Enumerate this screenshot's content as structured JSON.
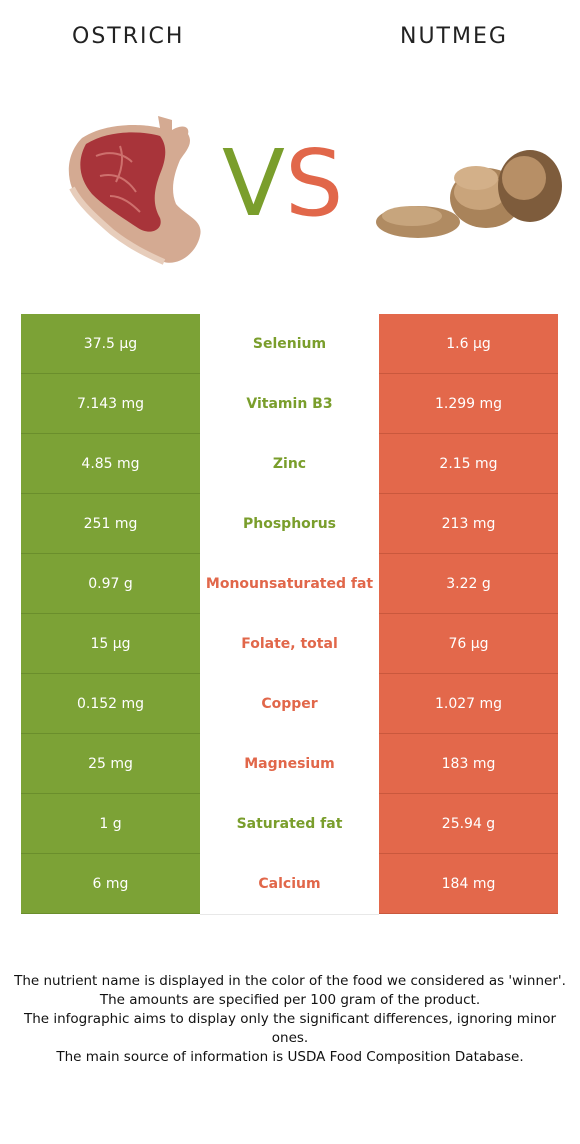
{
  "header": {
    "left_title": "OSTRICH",
    "right_title": "NUTMEG"
  },
  "vs": {
    "v": "V",
    "s": "S"
  },
  "colors": {
    "left_winner": "#7ca236",
    "right_winner": "#e3684b"
  },
  "rows": [
    {
      "left": "37.5 µg",
      "nutrient": "Selenium",
      "right": "1.6 µg",
      "winner": "left"
    },
    {
      "left": "7.143 mg",
      "nutrient": "Vitamin B3",
      "right": "1.299 mg",
      "winner": "left"
    },
    {
      "left": "4.85 mg",
      "nutrient": "Zinc",
      "right": "2.15 mg",
      "winner": "left"
    },
    {
      "left": "251 mg",
      "nutrient": "Phosphorus",
      "right": "213 mg",
      "winner": "left"
    },
    {
      "left": "0.97 g",
      "nutrient": "Monounsaturated fat",
      "right": "3.22 g",
      "winner": "right"
    },
    {
      "left": "15 µg",
      "nutrient": "Folate, total",
      "right": "76 µg",
      "winner": "right"
    },
    {
      "left": "0.152 mg",
      "nutrient": "Copper",
      "right": "1.027 mg",
      "winner": "right"
    },
    {
      "left": "25 mg",
      "nutrient": "Magnesium",
      "right": "183 mg",
      "winner": "right"
    },
    {
      "left": "1 g",
      "nutrient": "Saturated fat",
      "right": "25.94 g",
      "winner": "left"
    },
    {
      "left": "6 mg",
      "nutrient": "Calcium",
      "right": "184 mg",
      "winner": "right"
    }
  ],
  "footer": {
    "line1": "The nutrient name is displayed in the color of the food we considered as 'winner'.",
    "line2": "The amounts are specified per 100 gram of the product.",
    "line3": "The infographic aims to display only the significant differences, ignoring minor ones.",
    "line4": "The main source of information is USDA Food Composition Database."
  }
}
